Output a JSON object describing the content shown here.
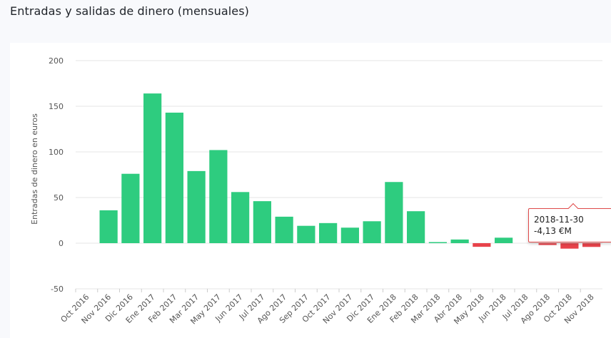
{
  "page": {
    "title": "Entradas y salidas de dinero (mensuales)"
  },
  "tooltip": {
    "date": "2018-11-30",
    "value": "-4,13 €M"
  },
  "colors": {
    "positive": "#2ecc7f",
    "negative": "#e8434b",
    "grid": "#e6e6e6"
  },
  "chart_data": {
    "type": "bar",
    "title": "Entradas y salidas de dinero (mensuales)",
    "ylabel": "Entradas de dinero en euros",
    "xlabel": "",
    "ylim": [
      -50,
      200
    ],
    "yticks": [
      200,
      150,
      100,
      50,
      0,
      -50
    ],
    "grid": true,
    "legend": "none",
    "categories": [
      "Oct 2016",
      "Nov 2016",
      "Dic 2016",
      "Ene 2017",
      "Feb 2017",
      "Mar 2017",
      "May 2017",
      "Jun 2017",
      "Jul 2017",
      "Ago 2017",
      "Sep 2017",
      "Oct 2017",
      "Nov 2017",
      "Dic 2017",
      "Ene 2018",
      "Feb 2018",
      "Mar 2018",
      "Abr 2018",
      "May 2018",
      "Jun 2018",
      "Jul 2018",
      "Ago 2018",
      "Oct 2018",
      "Nov 2018"
    ],
    "values": [
      0,
      36,
      76,
      164,
      143,
      79,
      102,
      56,
      46,
      29,
      19,
      22,
      17,
      24,
      67,
      35,
      1,
      4,
      -4,
      6,
      0,
      -2,
      -6,
      -4.13
    ]
  }
}
